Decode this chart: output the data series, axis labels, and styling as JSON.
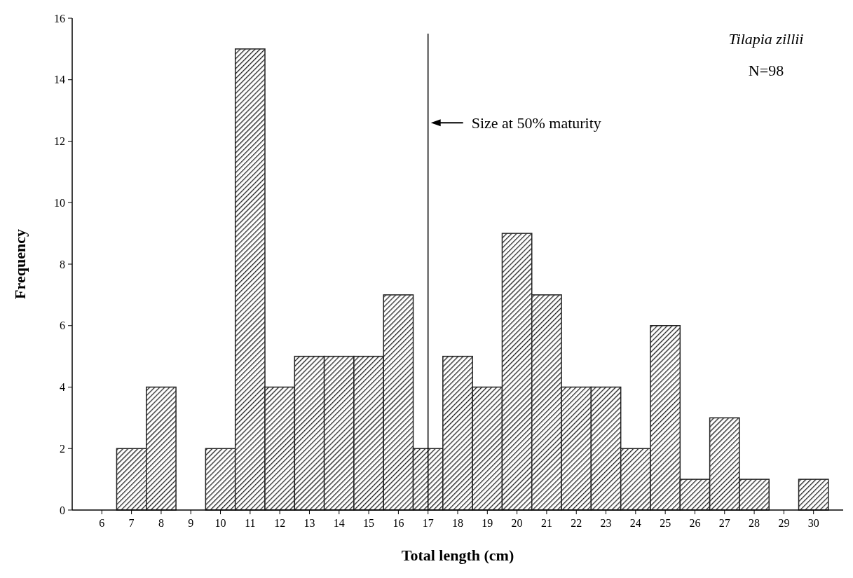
{
  "chart_data": {
    "type": "bar",
    "xlabel": "Total length (cm)",
    "ylabel": "Frequency",
    "categories": [
      "6",
      "7",
      "8",
      "9",
      "10",
      "11",
      "12",
      "13",
      "14",
      "15",
      "16",
      "17",
      "18",
      "19",
      "20",
      "21",
      "22",
      "23",
      "24",
      "25",
      "26",
      "27",
      "28",
      "29",
      "30"
    ],
    "values": [
      0,
      2,
      4,
      0,
      2,
      15,
      4,
      5,
      5,
      5,
      7,
      2,
      5,
      4,
      9,
      7,
      4,
      4,
      2,
      6,
      1,
      3,
      1,
      0,
      1
    ],
    "color": "#222222",
    "ylim": [
      0,
      16
    ],
    "yticks": [
      0,
      2,
      4,
      6,
      8,
      10,
      12,
      14,
      16
    ],
    "grid": false,
    "ref_lines": [
      {
        "axis": "x",
        "value": "17",
        "color": "#000000"
      }
    ],
    "annotations": [
      "Tilapia zillii",
      "N=98",
      {
        "text": "Size at 50% maturity",
        "x": "17",
        "y": 12.6
      }
    ]
  }
}
